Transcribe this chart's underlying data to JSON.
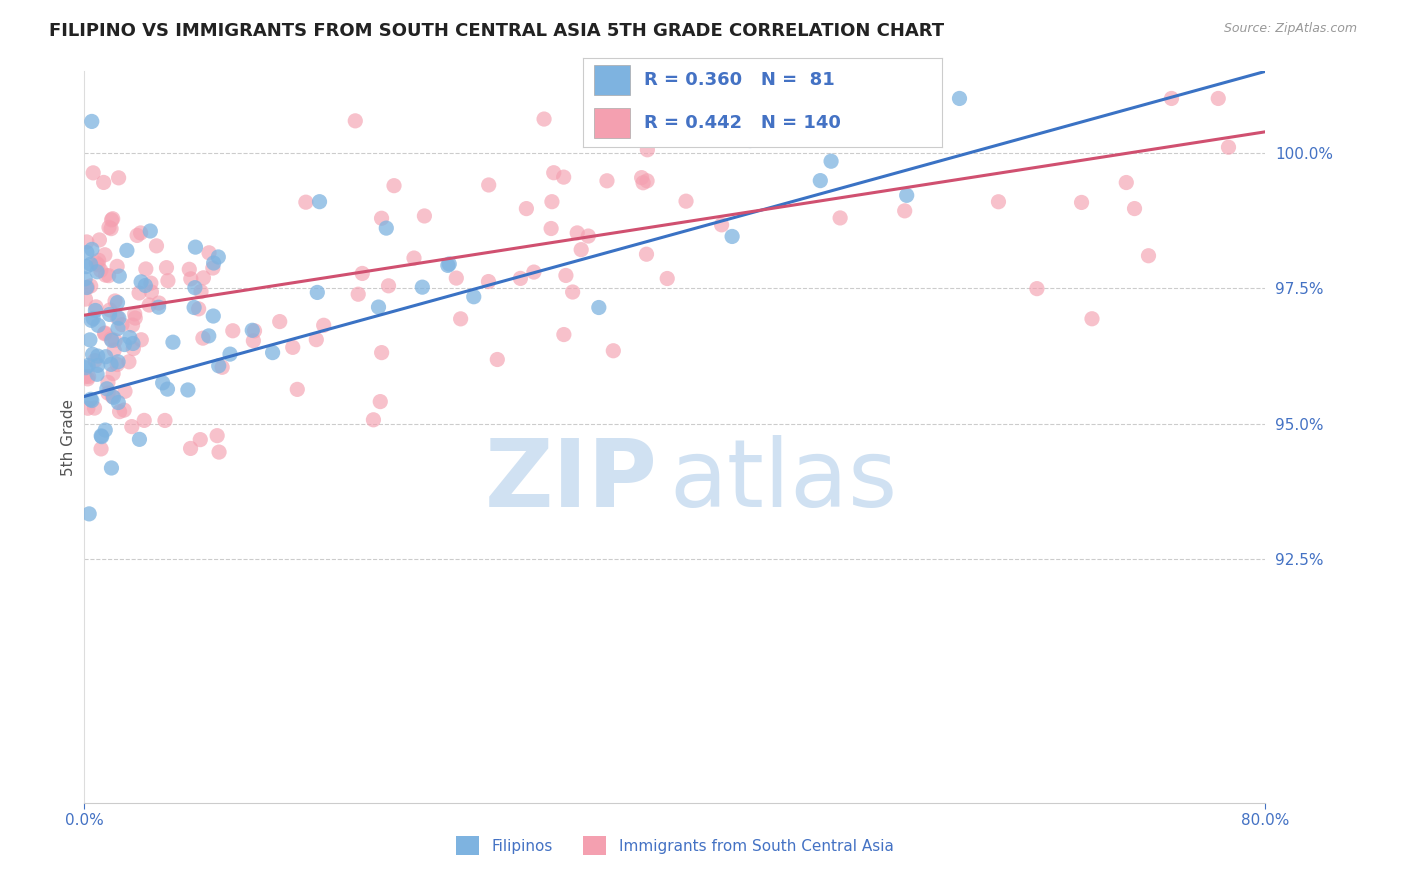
{
  "title": "FILIPINO VS IMMIGRANTS FROM SOUTH CENTRAL ASIA 5TH GRADE CORRELATION CHART",
  "source": "Source: ZipAtlas.com",
  "ylabel": "5th Grade",
  "x_min": 0.0,
  "x_max": 80.0,
  "y_min": 88.0,
  "y_max": 101.5,
  "y_ticks": [
    92.5,
    95.0,
    97.5,
    100.0
  ],
  "y_tick_labels": [
    "92.5%",
    "95.0%",
    "97.5%",
    "100.0%"
  ],
  "r_filipino": 0.36,
  "n_filipino": 81,
  "r_immigrant": 0.442,
  "n_immigrant": 140,
  "color_filipino": "#7EB3E0",
  "color_immigrant": "#F4A0B0",
  "line_color_filipino": "#3A72C4",
  "line_color_immigrant": "#D05070",
  "legend_label_filipino": "Filipinos",
  "legend_label_immigrant": "Immigrants from South Central Asia",
  "title_fontsize": 13,
  "axis_label_color": "#4472C4",
  "tick_label_color": "#4472C4",
  "grid_color": "#AAAAAA",
  "background_color": "#FFFFFF",
  "watermark_zip_color": "#C8DCF0",
  "watermark_atlas_color": "#C8DCF0"
}
